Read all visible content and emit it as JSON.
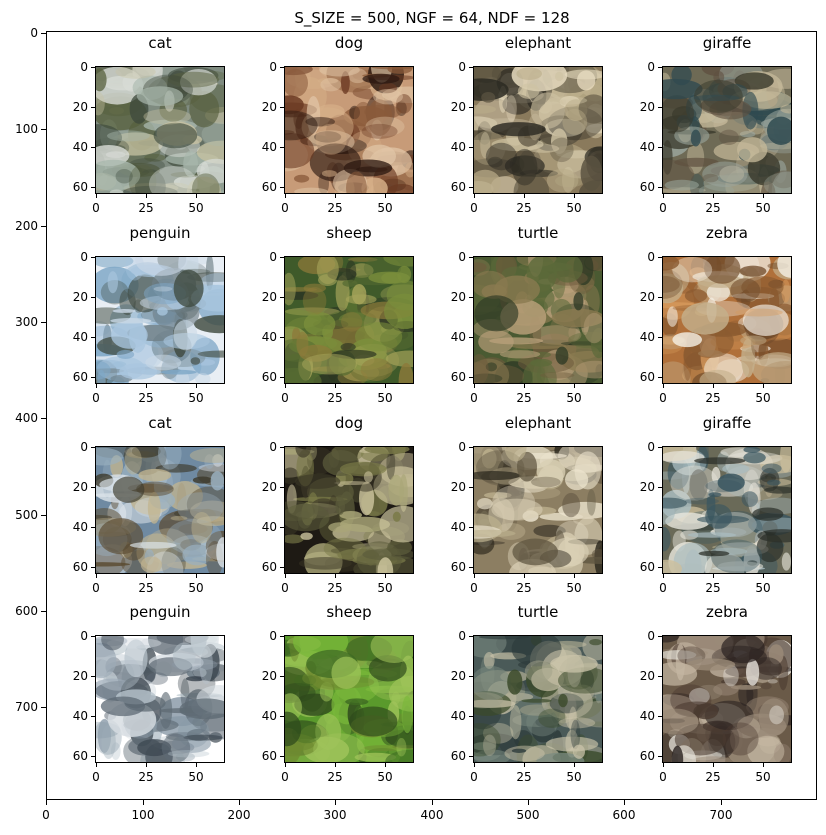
{
  "figure": {
    "title": "S_SIZE = 500, NGF = 64, NDF = 128",
    "outer_axes": {
      "y_ticks": [
        "0",
        "100",
        "200",
        "300",
        "400",
        "500",
        "600",
        "700"
      ],
      "x_ticks": [
        "0",
        "100",
        "200",
        "300",
        "400",
        "500",
        "600",
        "700"
      ]
    },
    "panel_axes": {
      "y_ticks": [
        "0",
        "20",
        "40",
        "60"
      ],
      "x_ticks": [
        "0",
        "25",
        "50"
      ]
    },
    "panels": [
      {
        "label": "cat",
        "palette": [
          "#7f8b80",
          "#d8dcd6",
          "#3e4a3c",
          "#a9b8ad",
          "#57603e",
          "#c7c2a2"
        ]
      },
      {
        "label": "dog",
        "palette": [
          "#c79b78",
          "#2b1810",
          "#6b3a22",
          "#e2c7a8",
          "#8a5a3a",
          "#d6b089"
        ]
      },
      {
        "label": "elephant",
        "palette": [
          "#8a7a5c",
          "#2c2a22",
          "#cfc3a4",
          "#5a5240",
          "#b8ab88",
          "#e8dcc0"
        ]
      },
      {
        "label": "giraffe",
        "palette": [
          "#6e6a55",
          "#3a3a2c",
          "#9aa59c",
          "#2f4a50",
          "#c5b99a",
          "#5f5040"
        ]
      },
      {
        "label": "penguin",
        "palette": [
          "#e8eef4",
          "#a9c6df",
          "#6f7f86",
          "#3f4a40",
          "#cbd9e6",
          "#7ea7c7"
        ]
      },
      {
        "label": "sheep",
        "palette": [
          "#3f5a2a",
          "#7b8f3c",
          "#2a3322",
          "#a6a45a",
          "#566b32",
          "#8d7a3a"
        ]
      },
      {
        "label": "turtle",
        "palette": [
          "#4a5a32",
          "#6e5a3c",
          "#2f3a25",
          "#8a7a50",
          "#b9a07a",
          "#5c6a3a"
        ]
      },
      {
        "label": "zebra",
        "palette": [
          "#b0703a",
          "#8a5a30",
          "#d69a5c",
          "#6f4a2a",
          "#c4b08c",
          "#f4efe4"
        ]
      },
      {
        "label": "cat",
        "palette": [
          "#6f8aa2",
          "#dce4ea",
          "#3c3a2c",
          "#9ab0c0",
          "#5a4a30",
          "#c2b590"
        ]
      },
      {
        "label": "dog",
        "palette": [
          "#1e1a14",
          "#7a7a48",
          "#a9a678",
          "#3a3626",
          "#cfc7a0",
          "#5a5a3a"
        ]
      },
      {
        "label": "elephant",
        "palette": [
          "#8c7e62",
          "#2a261c",
          "#d9cfb4",
          "#5e5440",
          "#bcb08e",
          "#ece4ce"
        ]
      },
      {
        "label": "giraffe",
        "palette": [
          "#6a6a58",
          "#2a2e28",
          "#a9bcc0",
          "#3a5660",
          "#cdbf9c",
          "#e8e6dc"
        ]
      },
      {
        "label": "penguin",
        "palette": [
          "#ffffff",
          "#8a9aa8",
          "#3c4650",
          "#b8c4cc",
          "#5e6a74",
          "#d6dde2"
        ]
      },
      {
        "label": "sheep",
        "palette": [
          "#5a9a2c",
          "#7ab83a",
          "#3e6a22",
          "#a0c45a",
          "#2f4a1c",
          "#6f8a30"
        ]
      },
      {
        "label": "turtle",
        "palette": [
          "#4a5a58",
          "#2c3a3a",
          "#7a8a80",
          "#a0a08a",
          "#3a4a2a",
          "#cbc4aa"
        ]
      },
      {
        "label": "zebra",
        "palette": [
          "#6a5a48",
          "#2a2220",
          "#9a8a78",
          "#c4b6a2",
          "#4a3a30",
          "#e6e2da"
        ]
      }
    ]
  }
}
